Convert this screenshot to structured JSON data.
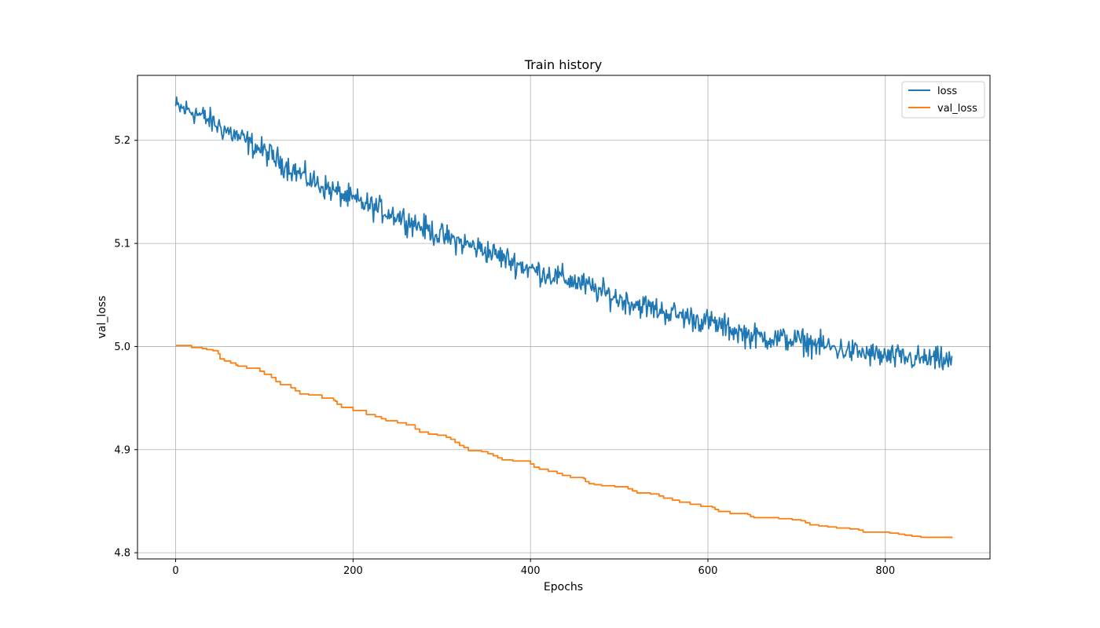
{
  "chart_data": {
    "type": "line",
    "title": "Train history",
    "xlabel": "Epochs",
    "ylabel": "val_loss",
    "xlim": [
      -43,
      918
    ],
    "ylim": [
      4.794,
      5.263
    ],
    "xticks": [
      0,
      200,
      400,
      600,
      800
    ],
    "yticks": [
      4.8,
      4.9,
      5.0,
      5.1,
      5.2
    ],
    "ytick_labels": [
      "4.8",
      "4.9",
      "5.0",
      "5.1",
      "5.2"
    ],
    "grid": true,
    "legend_position": "top-right",
    "series": [
      {
        "name": "loss",
        "color": "#1f77b4",
        "noise": 0.006,
        "points": [
          [
            0,
            5.232
          ],
          [
            20,
            5.228
          ],
          [
            50,
            5.213
          ],
          [
            100,
            5.189
          ],
          [
            150,
            5.162
          ],
          [
            200,
            5.142
          ],
          [
            250,
            5.127
          ],
          [
            300,
            5.107
          ],
          [
            350,
            5.093
          ],
          [
            400,
            5.075
          ],
          [
            450,
            5.063
          ],
          [
            500,
            5.046
          ],
          [
            550,
            5.034
          ],
          [
            600,
            5.024
          ],
          [
            650,
            5.01
          ],
          [
            700,
            5.006
          ],
          [
            750,
            4.997
          ],
          [
            800,
            4.99
          ],
          [
            875,
            4.986
          ]
        ]
      },
      {
        "name": "val_loss",
        "color": "#ff7f0e",
        "points": [
          [
            0,
            5.001
          ],
          [
            5,
            5.001
          ],
          [
            15,
            5.001
          ],
          [
            18,
            4.999
          ],
          [
            30,
            4.998
          ],
          [
            35,
            4.997
          ],
          [
            42,
            4.996
          ],
          [
            48,
            4.993
          ],
          [
            50,
            4.988
          ],
          [
            55,
            4.986
          ],
          [
            62,
            4.984
          ],
          [
            68,
            4.982
          ],
          [
            70,
            4.981
          ],
          [
            80,
            4.979
          ],
          [
            95,
            4.976
          ],
          [
            100,
            4.973
          ],
          [
            108,
            4.97
          ],
          [
            113,
            4.966
          ],
          [
            118,
            4.963
          ],
          [
            130,
            4.96
          ],
          [
            135,
            4.957
          ],
          [
            140,
            4.954
          ],
          [
            150,
            4.953
          ],
          [
            165,
            4.95
          ],
          [
            178,
            4.948
          ],
          [
            180,
            4.947
          ],
          [
            182,
            4.944
          ],
          [
            187,
            4.941
          ],
          [
            200,
            4.938
          ],
          [
            215,
            4.934
          ],
          [
            225,
            4.932
          ],
          [
            232,
            4.93
          ],
          [
            237,
            4.928
          ],
          [
            250,
            4.926
          ],
          [
            260,
            4.924
          ],
          [
            270,
            4.92
          ],
          [
            275,
            4.917
          ],
          [
            285,
            4.915
          ],
          [
            295,
            4.914
          ],
          [
            305,
            4.912
          ],
          [
            310,
            4.91
          ],
          [
            315,
            4.907
          ],
          [
            320,
            4.904
          ],
          [
            325,
            4.902
          ],
          [
            330,
            4.899
          ],
          [
            345,
            4.898
          ],
          [
            352,
            4.896
          ],
          [
            358,
            4.894
          ],
          [
            363,
            4.892
          ],
          [
            368,
            4.89
          ],
          [
            380,
            4.889
          ],
          [
            395,
            4.889
          ],
          [
            400,
            4.886
          ],
          [
            404,
            4.883
          ],
          [
            410,
            4.881
          ],
          [
            420,
            4.879
          ],
          [
            430,
            4.877
          ],
          [
            436,
            4.875
          ],
          [
            445,
            4.873
          ],
          [
            460,
            4.872
          ],
          [
            462,
            4.869
          ],
          [
            466,
            4.867
          ],
          [
            472,
            4.866
          ],
          [
            480,
            4.865
          ],
          [
            495,
            4.864
          ],
          [
            510,
            4.862
          ],
          [
            515,
            4.86
          ],
          [
            520,
            4.858
          ],
          [
            535,
            4.857
          ],
          [
            545,
            4.855
          ],
          [
            550,
            4.853
          ],
          [
            560,
            4.851
          ],
          [
            568,
            4.849
          ],
          [
            580,
            4.847
          ],
          [
            592,
            4.845
          ],
          [
            605,
            4.844
          ],
          [
            608,
            4.842
          ],
          [
            612,
            4.84
          ],
          [
            625,
            4.838
          ],
          [
            645,
            4.837
          ],
          [
            648,
            4.835
          ],
          [
            652,
            4.834
          ],
          [
            665,
            4.834
          ],
          [
            680,
            4.833
          ],
          [
            695,
            4.832
          ],
          [
            705,
            4.831
          ],
          [
            710,
            4.829
          ],
          [
            715,
            4.827
          ],
          [
            725,
            4.826
          ],
          [
            735,
            4.825
          ],
          [
            745,
            4.824
          ],
          [
            760,
            4.823
          ],
          [
            770,
            4.822
          ],
          [
            775,
            4.82
          ],
          [
            785,
            4.82
          ],
          [
            800,
            4.82
          ],
          [
            805,
            4.819
          ],
          [
            815,
            4.818
          ],
          [
            822,
            4.817
          ],
          [
            830,
            4.816
          ],
          [
            840,
            4.815
          ],
          [
            850,
            4.815
          ],
          [
            875,
            4.814
          ]
        ]
      }
    ]
  }
}
